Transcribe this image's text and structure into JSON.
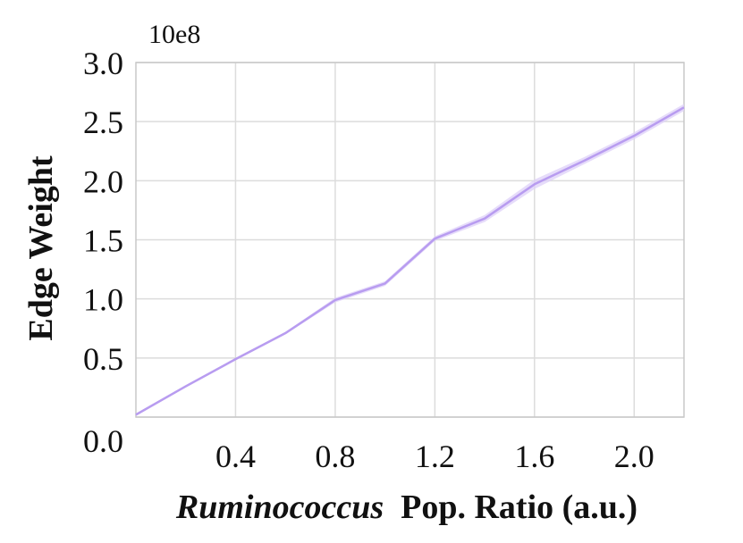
{
  "chart_data": {
    "type": "line",
    "title": "",
    "xlabel_italic": "Ruminococcus",
    "xlabel_rest": " Pop. Ratio (a.u.)",
    "ylabel": "Edge Weight",
    "y_multiplier": "10e8",
    "xlim": [
      0.0,
      2.2
    ],
    "ylim": [
      0.0,
      3.0
    ],
    "x_ticks": [
      0.4,
      0.8,
      1.2,
      1.6,
      2.0
    ],
    "x_tick_labels": [
      "0.4",
      "0.8",
      "1.2",
      "1.6",
      "2.0"
    ],
    "y_ticks": [
      0.0,
      0.5,
      1.0,
      1.5,
      2.0,
      2.5,
      3.0
    ],
    "y_tick_labels": [
      "0.0",
      "0.5",
      "1.0",
      "1.5",
      "2.0",
      "2.5",
      "3.0"
    ],
    "grid": true,
    "legend": false,
    "series": [
      {
        "color": "#b89cf0",
        "band_color": "#ddd0f8",
        "x": [
          0.0,
          0.2,
          0.4,
          0.6,
          0.8,
          1.0,
          1.2,
          1.4,
          1.6,
          1.8,
          2.0,
          2.2
        ],
        "y": [
          0.02,
          0.26,
          0.49,
          0.71,
          0.99,
          1.13,
          1.51,
          1.68,
          1.97,
          2.17,
          2.38,
          2.62
        ],
        "y_lower": [
          0.01,
          0.25,
          0.48,
          0.7,
          0.97,
          1.11,
          1.49,
          1.65,
          1.93,
          2.14,
          2.35,
          2.59
        ],
        "y_upper": [
          0.03,
          0.27,
          0.5,
          0.72,
          1.01,
          1.15,
          1.53,
          1.71,
          2.01,
          2.2,
          2.41,
          2.65
        ]
      }
    ]
  }
}
